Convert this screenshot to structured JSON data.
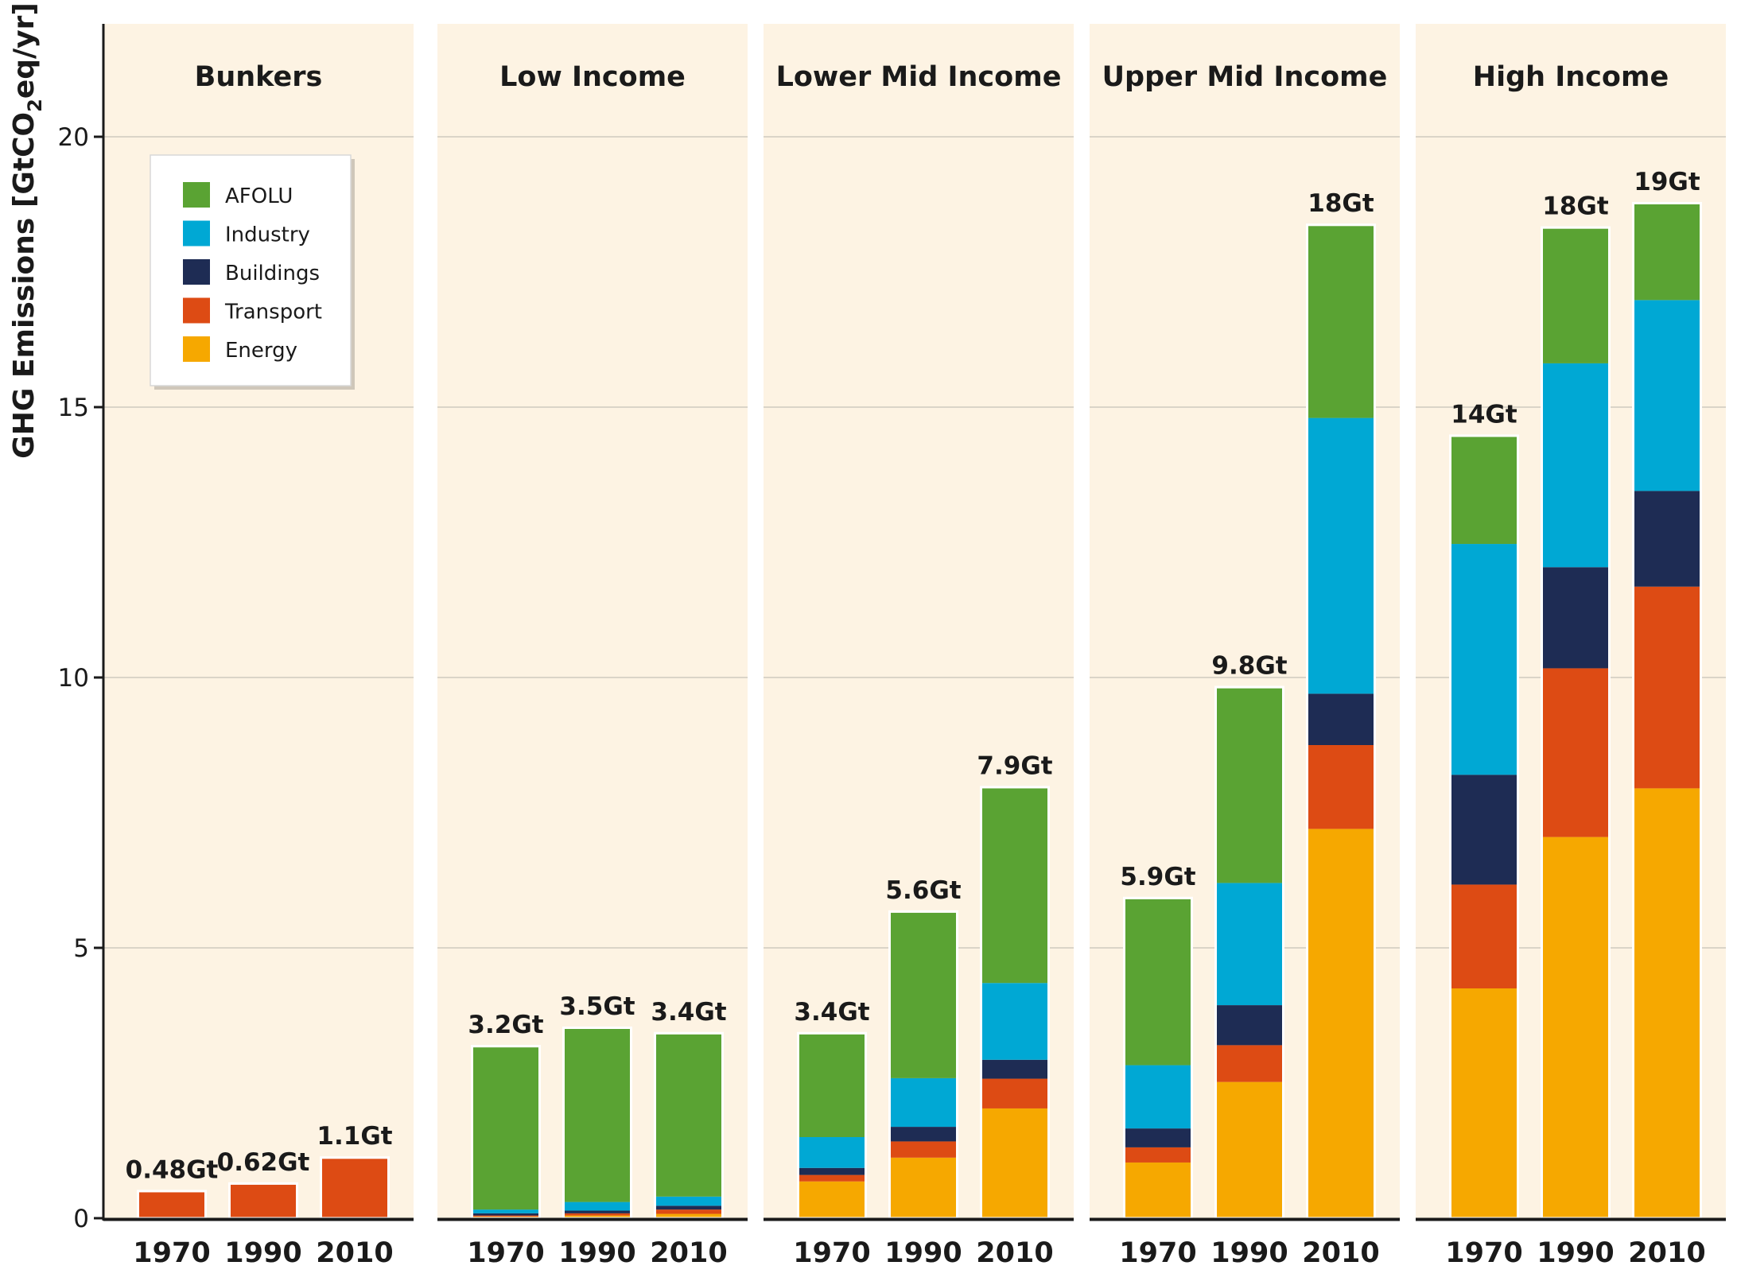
{
  "chart_data": {
    "type": "bar",
    "stacked": true,
    "ylabel_main": "GHG Emissions [GtCO",
    "ylabel_sub": "2",
    "ylabel_end": "eq/yr]",
    "ylim": [
      0,
      22
    ],
    "yticks": [
      0,
      5,
      10,
      15,
      20
    ],
    "grid": true,
    "legend_position": "top-left",
    "legend": [
      {
        "name": "AFOLU",
        "color": "#5aa333"
      },
      {
        "name": "Industry",
        "color": "#00a8d4"
      },
      {
        "name": "Buildings",
        "color": "#1e2c54"
      },
      {
        "name": "Transport",
        "color": "#dd4b14"
      },
      {
        "name": "Energy",
        "color": "#f6a800"
      }
    ],
    "stack_order": [
      "Energy",
      "Transport",
      "Buildings",
      "Industry",
      "AFOLU"
    ],
    "panels": [
      {
        "title": "Bunkers",
        "bars": [
          {
            "year": "1970",
            "total": "0.48Gt",
            "values": {
              "Energy": 0,
              "Transport": 0.48,
              "Buildings": 0,
              "Industry": 0,
              "AFOLU": 0
            }
          },
          {
            "year": "1990",
            "total": "0.62Gt",
            "values": {
              "Energy": 0,
              "Transport": 0.62,
              "Buildings": 0,
              "Industry": 0,
              "AFOLU": 0
            }
          },
          {
            "year": "2010",
            "total": "1.1Gt",
            "values": {
              "Energy": 0,
              "Transport": 1.1,
              "Buildings": 0,
              "Industry": 0,
              "AFOLU": 0
            }
          }
        ]
      },
      {
        "title": "Low Income",
        "bars": [
          {
            "year": "1970",
            "total": "3.2Gt",
            "values": {
              "Energy": 0.03,
              "Transport": 0.02,
              "Buildings": 0.04,
              "Industry": 0.07,
              "AFOLU": 3.0
            }
          },
          {
            "year": "1990",
            "total": "3.5Gt",
            "values": {
              "Energy": 0.05,
              "Transport": 0.04,
              "Buildings": 0.05,
              "Industry": 0.16,
              "AFOLU": 3.2
            }
          },
          {
            "year": "2010",
            "total": "3.4Gt",
            "values": {
              "Energy": 0.08,
              "Transport": 0.08,
              "Buildings": 0.07,
              "Industry": 0.17,
              "AFOLU": 3.0
            }
          }
        ]
      },
      {
        "title": "Lower Mid Income",
        "bars": [
          {
            "year": "1970",
            "total": "3.4Gt",
            "values": {
              "Energy": 0.68,
              "Transport": 0.12,
              "Buildings": 0.13,
              "Industry": 0.57,
              "AFOLU": 1.9
            }
          },
          {
            "year": "1990",
            "total": "5.6Gt",
            "values": {
              "Energy": 1.12,
              "Transport": 0.3,
              "Buildings": 0.27,
              "Industry": 0.9,
              "AFOLU": 3.06
            }
          },
          {
            "year": "2010",
            "total": "7.9Gt",
            "values": {
              "Energy": 2.03,
              "Transport": 0.55,
              "Buildings": 0.35,
              "Industry": 1.42,
              "AFOLU": 3.6
            }
          }
        ]
      },
      {
        "title": "Upper Mid Income",
        "bars": [
          {
            "year": "1970",
            "total": "5.9Gt",
            "values": {
              "Energy": 1.03,
              "Transport": 0.28,
              "Buildings": 0.35,
              "Industry": 1.17,
              "AFOLU": 3.07
            }
          },
          {
            "year": "1990",
            "total": "9.8Gt",
            "values": {
              "Energy": 2.52,
              "Transport": 0.68,
              "Buildings": 0.74,
              "Industry": 2.26,
              "AFOLU": 3.6
            }
          },
          {
            "year": "2010",
            "total": "18Gt",
            "values": {
              "Energy": 7.2,
              "Transport": 1.55,
              "Buildings": 0.95,
              "Industry": 5.1,
              "AFOLU": 3.55
            }
          }
        ]
      },
      {
        "title": "High Income",
        "bars": [
          {
            "year": "1970",
            "total": "14Gt",
            "values": {
              "Energy": 4.25,
              "Transport": 1.92,
              "Buildings": 2.03,
              "Industry": 4.27,
              "AFOLU": 1.98
            }
          },
          {
            "year": "1990",
            "total": "18Gt",
            "values": {
              "Energy": 7.05,
              "Transport": 3.12,
              "Buildings": 1.87,
              "Industry": 3.77,
              "AFOLU": 2.49
            }
          },
          {
            "year": "2010",
            "total": "19Gt",
            "values": {
              "Energy": 7.95,
              "Transport": 3.73,
              "Buildings": 1.77,
              "Industry": 3.53,
              "AFOLU": 1.77
            }
          }
        ]
      }
    ]
  }
}
